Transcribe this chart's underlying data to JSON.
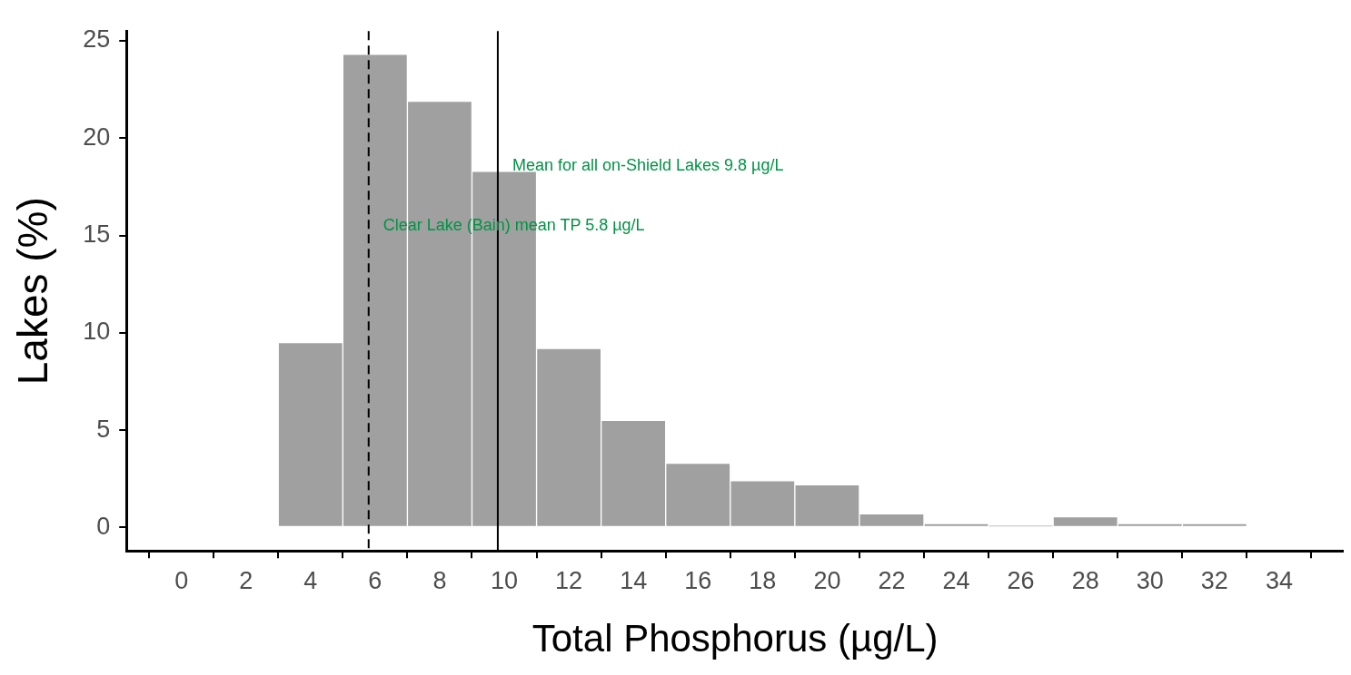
{
  "chart_data": {
    "type": "histogram",
    "xlabel": "Total Phosphorus (µg/L)",
    "ylabel": "Lakes (%)",
    "bins": [
      3,
      5,
      7,
      9,
      11,
      13,
      15,
      17,
      19,
      21,
      23,
      25,
      27,
      29,
      31,
      33
    ],
    "values": [
      9.5,
      24.3,
      21.9,
      18.3,
      9.2,
      5.5,
      3.3,
      2.4,
      2.2,
      0.7,
      0.2,
      0.1,
      0.55,
      0.2,
      0.2
    ],
    "color": "#a0a0a0",
    "xlim": [
      -1.7,
      36
    ],
    "xticks": [
      0,
      2,
      4,
      6,
      8,
      10,
      12,
      14,
      16,
      18,
      20,
      22,
      24,
      26,
      28,
      30,
      32,
      34
    ],
    "ylim": [
      -1.2,
      25.5
    ],
    "yticks": [
      0,
      5,
      10,
      15,
      20,
      25
    ],
    "grid": false,
    "ref_lines": [
      {
        "axis": "x",
        "value": 5.8,
        "line_style": "dashed",
        "color": "#000000",
        "label": "Clear Lake (Bain) mean TP 5.8 µg/L"
      },
      {
        "axis": "x",
        "value": 9.8,
        "line_style": "solid",
        "color": "#000000",
        "label": "Mean for all on-Shield Lakes 9.8 µg/L"
      }
    ]
  }
}
